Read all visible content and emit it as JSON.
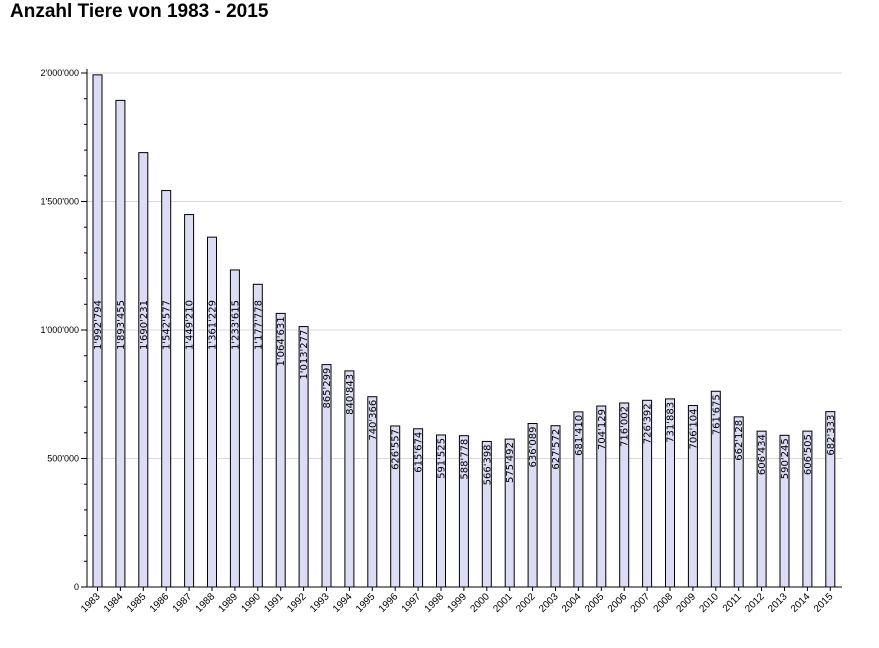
{
  "chart_data": {
    "type": "bar",
    "title": "Anzahl Tiere von 1983 - 2015",
    "xlabel": "",
    "ylabel": "",
    "ylim": [
      0,
      2000000
    ],
    "yticks": [
      0,
      500000,
      1000000,
      1500000,
      2000000
    ],
    "ytick_labels": [
      "0",
      "500'000",
      "1'000'000",
      "1'500'000",
      "2'000'000"
    ],
    "grid": true,
    "categories": [
      "1983",
      "1984",
      "1985",
      "1986",
      "1987",
      "1988",
      "1989",
      "1990",
      "1991",
      "1992",
      "1993",
      "1994",
      "1995",
      "1996",
      "1997",
      "1998",
      "1999",
      "2000",
      "2001",
      "2002",
      "2003",
      "2004",
      "2005",
      "2006",
      "2007",
      "2008",
      "2009",
      "2010",
      "2011",
      "2012",
      "2013",
      "2014",
      "2015"
    ],
    "values": [
      1992794,
      1893455,
      1690231,
      1542577,
      1449210,
      1361229,
      1233615,
      1177778,
      1064631,
      1013277,
      865299,
      840843,
      740366,
      626557,
      615674,
      591525,
      588778,
      566398,
      575492,
      636089,
      627572,
      681410,
      704129,
      716002,
      726392,
      731883,
      706104,
      761675,
      662128,
      606434,
      590245,
      606505,
      682333
    ],
    "value_labels": [
      "1'992'794",
      "1'893'455",
      "1'690'231",
      "1'542'577",
      "1'449'210",
      "1'361'229",
      "1'233'615",
      "1'177'778",
      "1'064'631",
      "1'013'277",
      "865'299",
      "840'843",
      "740'366",
      "626'557",
      "615'674",
      "591'525",
      "588'778",
      "566'398",
      "575'492",
      "636'089",
      "627'572",
      "681'410",
      "704'129",
      "716'002",
      "726'392",
      "731'883",
      "706'104",
      "761'675",
      "662'128",
      "606'434",
      "590'245",
      "606'505",
      "682'333"
    ],
    "colors": {
      "bar_fill": "#dcdcf5",
      "bar_stroke": "#000000",
      "grid": "#d9d9d9",
      "axis": "#000000"
    }
  }
}
